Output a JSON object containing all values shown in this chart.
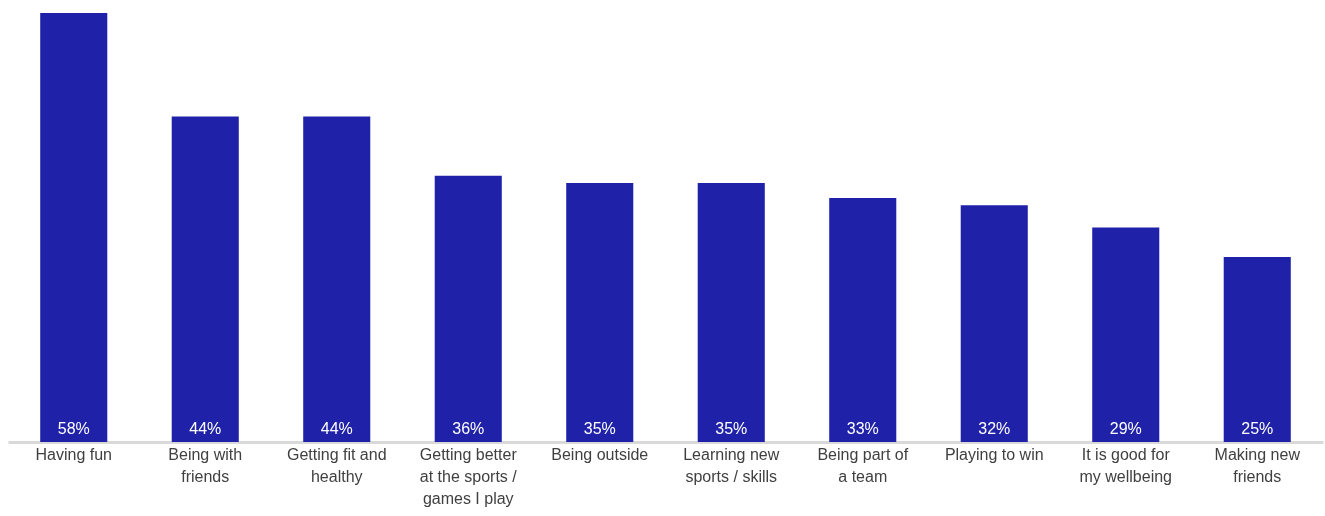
{
  "chart_data": {
    "type": "bar",
    "categories": [
      "Having fun",
      "Being with friends",
      "Getting fit and healthy",
      "Getting better at the sports / games I play",
      "Being outside",
      "Learning new sports / skills",
      "Being part of a team",
      "Playing to win",
      "It is good for my wellbeing",
      "Making new friends"
    ],
    "values": [
      58,
      44,
      44,
      36,
      35,
      35,
      33,
      32,
      29,
      25
    ],
    "value_labels": [
      "58%",
      "44%",
      "44%",
      "36%",
      "35%",
      "35%",
      "33%",
      "32%",
      "29%",
      "25%"
    ],
    "color": "#1f22a8"
  }
}
